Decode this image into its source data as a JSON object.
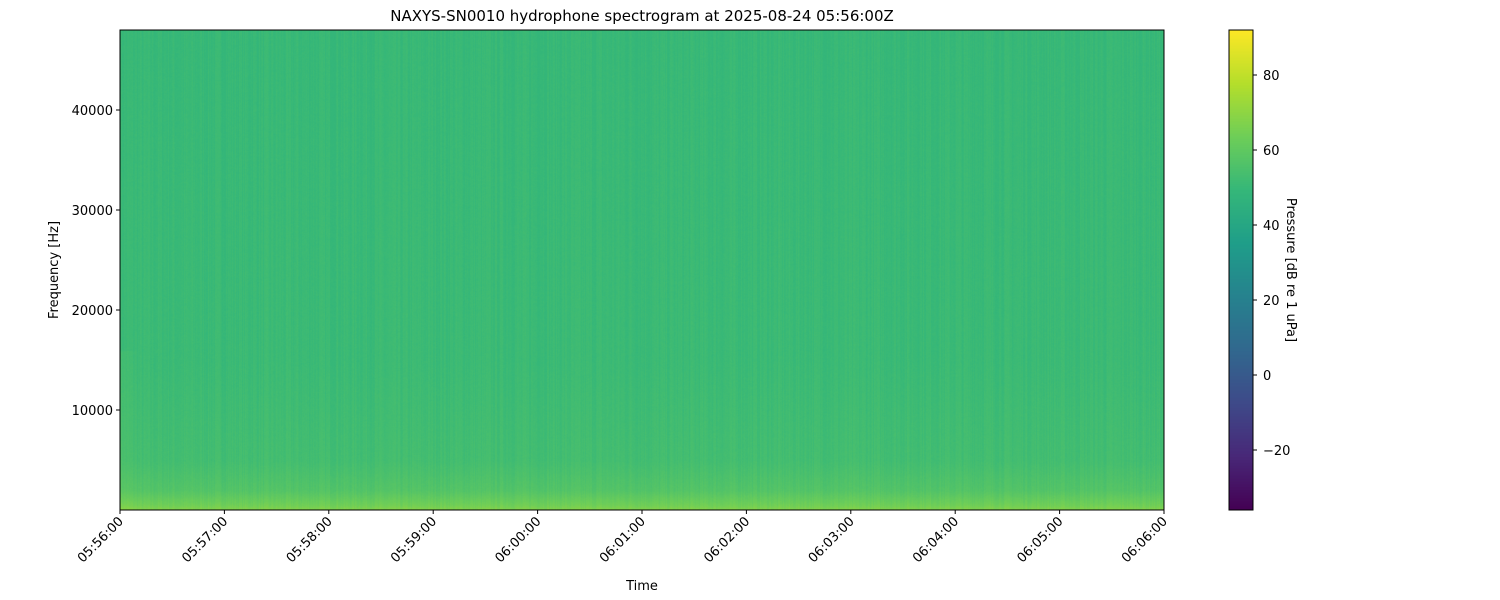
{
  "chart_data": {
    "type": "heatmap",
    "title": "NAXYS-SN0010 hydrophone spectrogram at 2025-08-24 05:56:00Z",
    "xlabel": "Time",
    "ylabel": "Frequency [Hz]",
    "x_ticks": [
      "05:56:00",
      "05:57:00",
      "05:58:00",
      "05:59:00",
      "06:00:00",
      "06:01:00",
      "06:02:00",
      "06:03:00",
      "06:04:00",
      "06:05:00",
      "06:06:00"
    ],
    "xlim": [
      "05:56:00",
      "06:06:00"
    ],
    "y_ticks": [
      10000,
      20000,
      30000,
      40000
    ],
    "ylim": [
      0,
      48000
    ],
    "colormap": "viridis",
    "colorbar": {
      "label": "Pressure [dB re 1 uPa]",
      "ticks": [
        -20,
        0,
        20,
        40,
        60,
        80
      ],
      "range": [
        -36,
        92
      ]
    },
    "approx_level_profile_db": [
      {
        "freq_hz": 0,
        "level": 68
      },
      {
        "freq_hz": 500,
        "level": 64
      },
      {
        "freq_hz": 2000,
        "level": 57
      },
      {
        "freq_hz": 5000,
        "level": 53
      },
      {
        "freq_hz": 15000,
        "level": 51
      },
      {
        "freq_hz": 48000,
        "level": 50
      }
    ],
    "grid": false
  }
}
